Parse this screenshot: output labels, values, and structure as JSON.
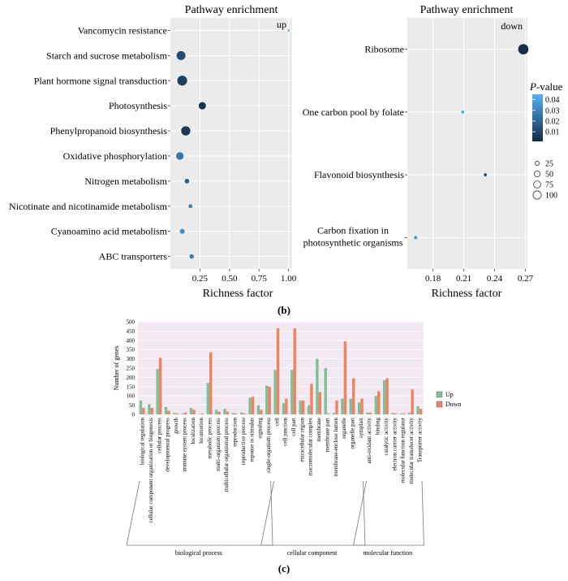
{
  "panel_labels": {
    "b": "(b)",
    "c": "(c)"
  },
  "chart_data": [
    {
      "type": "scatter",
      "title": "Pathway enrichment",
      "tag": "up",
      "xlabel": "Richness factor",
      "ylabel": "",
      "xlim": [
        0,
        1.03
      ],
      "xticks": [
        "0.25",
        "0.50",
        "0.75",
        "1.00"
      ],
      "grid": true,
      "categories": [
        "Vancomycin resistance",
        "Starch and sucrose metabolism",
        "Plant hormone signal transduction",
        "Photosynthesis",
        "Phenylpropanoid biosynthesis",
        "Oxidative phosphorylation",
        "Nitrogen metabolism",
        "Nicotinate and nicotinamide metabolism",
        "Cyanoamino acid metabolism",
        "ABC transporters"
      ],
      "points": [
        {
          "pathway": "Vancomycin resistance",
          "x": 1.0,
          "p": 0.042,
          "count": 2
        },
        {
          "pathway": "Starch and sucrose metabolism",
          "x": 0.09,
          "p": 0.012,
          "count": 45
        },
        {
          "pathway": "Plant hormone signal transduction",
          "x": 0.1,
          "p": 0.008,
          "count": 55
        },
        {
          "pathway": "Photosynthesis",
          "x": 0.27,
          "p": 0.004,
          "count": 30
        },
        {
          "pathway": "Phenylpropanoid biosynthesis",
          "x": 0.13,
          "p": 0.006,
          "count": 48
        },
        {
          "pathway": "Oxidative phosphorylation",
          "x": 0.08,
          "p": 0.025,
          "count": 32
        },
        {
          "pathway": "Nitrogen metabolism",
          "x": 0.14,
          "p": 0.018,
          "count": 12
        },
        {
          "pathway": "Nicotinate and nicotinamide metabolism",
          "x": 0.17,
          "p": 0.03,
          "count": 9
        },
        {
          "pathway": "Cyanoamino acid metabolism",
          "x": 0.1,
          "p": 0.033,
          "count": 14
        },
        {
          "pathway": "ABC transporters",
          "x": 0.18,
          "p": 0.028,
          "count": 11
        }
      ]
    },
    {
      "type": "scatter",
      "title": "Pathway enrichment",
      "tag": "down",
      "xlabel": "Richness factor",
      "ylabel": "",
      "xlim": [
        0.155,
        0.272
      ],
      "xticks": [
        "0.18",
        "0.21",
        "0.24",
        "0.27"
      ],
      "grid": true,
      "categories": [
        "Ribosome",
        "One carbon pool by folate",
        "Flavonoid biosynthesis",
        "Carbon fixation in|photosynthetic organisms"
      ],
      "points": [
        {
          "pathway": "Ribosome",
          "x": 0.268,
          "p": 0.002,
          "count": 60
        },
        {
          "pathway": "One carbon pool by folate",
          "x": 0.209,
          "p": 0.04,
          "count": 5
        },
        {
          "pathway": "Flavonoid biosynthesis",
          "x": 0.231,
          "p": 0.01,
          "count": 5
        },
        {
          "pathway": "Carbon fixation in photosynthetic organisms",
          "x": 0.163,
          "p": 0.036,
          "count": 6
        }
      ],
      "legend": {
        "color_title_italic": "P",
        "color_title_rest": "-value",
        "color_ticks": [
          "0.04",
          "0.03",
          "0.02",
          "0.01"
        ],
        "size_ticks": [
          "25",
          "50",
          "75",
          "100"
        ],
        "placement": "right"
      }
    },
    {
      "type": "bar",
      "title": "",
      "xlabel": "",
      "ylabel": "Number of genes",
      "ylim": [
        0,
        500
      ],
      "yticks": [
        "0",
        "50",
        "100",
        "150",
        "200",
        "250",
        "300",
        "350",
        "400",
        "450",
        "500"
      ],
      "categories": [
        "biological regulation",
        "cellular component organization or biogenesis",
        "cellular process",
        "developmental progress",
        "growth",
        "immune system process",
        "localization",
        "locomotion",
        "metabolic process",
        "multi-organism process",
        "multicellular organismal process",
        "reproduction",
        "reproductive process",
        "reponse to stimulus",
        "signaling",
        "single-organism process",
        "cell",
        "cell junction",
        "cell part",
        "extracellular region",
        "macromolecular complex",
        "membrane",
        "membrane part",
        "membrane-enclose lumen",
        "organelle",
        "organelle part",
        "symplast",
        "anti-oxidant activity",
        "binding",
        "catalytic activity",
        "electron carrier activity",
        "molecular function regulator",
        "molecular transducer activity",
        "Transporter activity"
      ],
      "series": [
        {
          "name": "Up",
          "color": "#7fbf9a",
          "values": [
            75,
            55,
            245,
            40,
            8,
            5,
            35,
            2,
            170,
            25,
            30,
            8,
            10,
            90,
            50,
            155,
            240,
            60,
            240,
            75,
            50,
            300,
            250,
            8,
            85,
            85,
            65,
            10,
            100,
            185,
            8,
            5,
            10,
            45
          ]
        },
        {
          "name": "Down",
          "color": "#f0825e",
          "values": [
            35,
            35,
            305,
            20,
            5,
            10,
            25,
            5,
            335,
            15,
            15,
            5,
            5,
            95,
            25,
            150,
            465,
            85,
            465,
            75,
            165,
            120,
            5,
            75,
            395,
            195,
            85,
            10,
            125,
            195,
            5,
            5,
            135,
            30
          ]
        }
      ],
      "groups": [
        {
          "label": "biological process",
          "start": 0,
          "end": 15
        },
        {
          "label": "cellular component",
          "start": 16,
          "end": 26
        },
        {
          "label": "molecular function",
          "start": 27,
          "end": 33
        }
      ],
      "legend_placement": "right"
    }
  ]
}
